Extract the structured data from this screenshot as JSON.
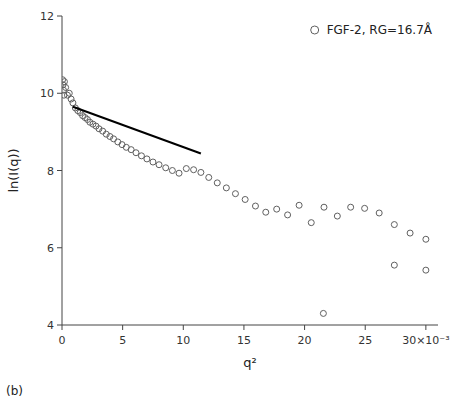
{
  "chart_data": {
    "type": "scatter",
    "xlabel": "q²",
    "ylabel": "ln(I(q))",
    "xlim": [
      0,
      0.031
    ],
    "ylim": [
      4,
      12
    ],
    "xticks": [
      0,
      {
        "value": 0.005,
        "label": "5"
      },
      {
        "value": 0.01,
        "label": "10"
      },
      {
        "value": 0.015,
        "label": "15"
      },
      {
        "value": 0.02,
        "label": "20"
      },
      {
        "value": 0.025,
        "label": "25"
      },
      {
        "value": 0.03,
        "label": "30×10⁻³"
      }
    ],
    "yticks": [
      4,
      6,
      8,
      10,
      12
    ],
    "grid": false,
    "legend": "upper right",
    "annotations": [
      "(b)"
    ],
    "series": [
      {
        "name": "FGF-2, RG=16.7Å",
        "type": "scatter",
        "marker": "circle",
        "color": "#606060",
        "x": [
          0.0002,
          0.0003,
          0.00045,
          0.0006,
          0.00075,
          0.0009,
          0.0011,
          0.0013,
          0.0015,
          0.0017,
          0.0019,
          0.0021,
          0.0023,
          0.00255,
          0.0028,
          0.00305,
          0.00335,
          0.00365,
          0.00395,
          0.00425,
          0.0046,
          0.00495,
          0.0053,
          0.0057,
          0.0061,
          0.00655,
          0.007,
          0.0075,
          0.008,
          0.00855,
          0.0091,
          0.00965,
          0.01025,
          0.01085,
          0.01145,
          0.0121,
          0.0128,
          0.01355,
          0.0143,
          0.0151,
          0.01595,
          0.0168,
          0.0177,
          0.0186,
          0.01955,
          0.02055,
          0.0216,
          0.0227,
          0.0238,
          0.02495,
          0.02615,
          0.0274,
          0.0287,
          0.03,
          5e-05,
          8e-05,
          0.00012,
          0.00016,
          0.02155,
          0.0274,
          0.03
        ],
        "values": [
          10.3,
          10.15,
          9.95,
          10.0,
          9.85,
          9.75,
          9.62,
          9.55,
          9.5,
          9.42,
          9.37,
          9.32,
          9.25,
          9.2,
          9.15,
          9.08,
          9.02,
          8.94,
          8.88,
          8.82,
          8.74,
          8.67,
          8.6,
          8.54,
          8.46,
          8.38,
          8.3,
          8.22,
          8.15,
          8.07,
          8.0,
          7.93,
          8.05,
          8.02,
          7.95,
          7.82,
          7.68,
          7.55,
          7.4,
          7.25,
          7.08,
          6.92,
          7.0,
          6.85,
          7.1,
          6.65,
          7.05,
          6.82,
          7.05,
          7.02,
          6.9,
          6.6,
          6.38,
          6.22,
          10.35,
          10.22,
          10.08,
          9.95,
          4.3,
          5.55,
          5.42
        ]
      },
      {
        "type": "line",
        "line_style": "solid",
        "color": "black",
        "x": [
          0.0009,
          0.01145
        ],
        "values": [
          9.65,
          8.44
        ]
      }
    ]
  }
}
